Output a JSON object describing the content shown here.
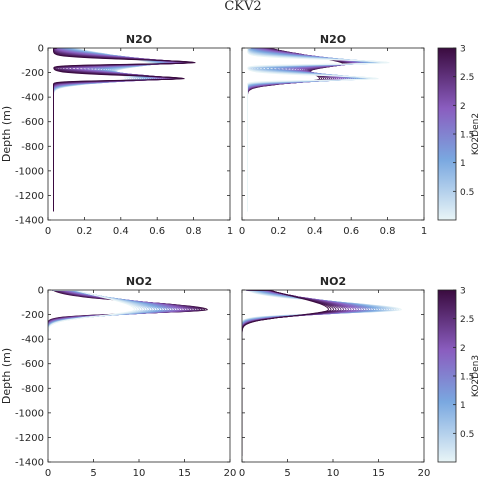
{
  "figure": {
    "title": "CKV2"
  },
  "colors": {
    "low": "#e9f5f7",
    "mid1": "#7aa8e0",
    "mid2": "#8a5dbf",
    "high": "#3a0b3f",
    "axis": "#262626"
  },
  "chart_data": [
    {
      "id": "n2o-left",
      "type": "line",
      "title": "N2O",
      "xlim": [
        0,
        1
      ],
      "ylim": [
        -1400,
        0
      ],
      "xticks": [
        0,
        0.2,
        0.4,
        0.6,
        0.8,
        1
      ],
      "xtick_labels": [
        "0",
        "0.2",
        "0.4",
        "0.6",
        "0.8",
        "1"
      ],
      "yticks": [
        0,
        -200,
        -400,
        -600,
        -800,
        -1000,
        -1200,
        -1400
      ],
      "ytick_labels": [
        "0",
        "-200",
        "-400",
        "-600",
        "-800",
        "-1000",
        "-1200",
        "-1400"
      ],
      "ylabel": "Depth (m)",
      "profile": {
        "base": 0.03,
        "peaks": [
          {
            "depth": -120,
            "amp": 0.78
          },
          {
            "depth": -250,
            "amp": 0.72
          }
        ],
        "min_depth": -1330
      },
      "n_lines": 30,
      "color_reversed": false
    },
    {
      "id": "n2o-right",
      "type": "line",
      "title": "N2O",
      "xlim": [
        0,
        1
      ],
      "ylim": [
        -1400,
        0
      ],
      "xticks": [
        0,
        0.2,
        0.4,
        0.6,
        0.8,
        1
      ],
      "xtick_labels": [
        "0",
        "0.2",
        "0.4",
        "0.6",
        "0.8",
        "1"
      ],
      "profile": {
        "base": 0.03,
        "peaks": [
          {
            "depth": -120,
            "amp": 0.78
          },
          {
            "depth": -250,
            "amp": 0.72
          }
        ],
        "min_depth": -1330
      },
      "n_lines": 30,
      "color_reversed": true,
      "colorbar": {
        "label": "KO2Den2",
        "range": [
          0,
          3
        ],
        "ticks": [
          0.5,
          1,
          1.5,
          2,
          2.5,
          3
        ],
        "tick_labels": [
          "0.5",
          "1",
          "1.5",
          "2",
          "2.5",
          "3"
        ]
      }
    },
    {
      "id": "no2-left",
      "type": "line",
      "title": "NO2",
      "xlim": [
        0,
        20
      ],
      "ylim": [
        -1400,
        0
      ],
      "xticks": [
        0,
        5,
        10,
        15,
        20
      ],
      "xtick_labels": [
        "0",
        "5",
        "10",
        "15",
        "20"
      ],
      "yticks": [
        0,
        -200,
        -400,
        -600,
        -800,
        -1000,
        -1200,
        -1400
      ],
      "ytick_labels": [
        "0",
        "-200",
        "-400",
        "-600",
        "-800",
        "-1000",
        "-1200",
        "-1400"
      ],
      "ylabel": "Depth (m)",
      "profile": {
        "base": 0.0,
        "peaks": [
          {
            "depth": -160,
            "amp_max": 17.5,
            "amp_min": 9.5
          }
        ],
        "min_depth": -1350
      },
      "n_lines": 30,
      "color_reversed": true
    },
    {
      "id": "no2-right",
      "type": "line",
      "title": "NO2",
      "xlim": [
        0,
        20
      ],
      "ylim": [
        -1400,
        0
      ],
      "xticks": [
        0,
        5,
        10,
        15,
        20
      ],
      "xtick_labels": [
        "0",
        "5",
        "10",
        "15",
        "20"
      ],
      "profile": {
        "base": 0.0,
        "peaks": [
          {
            "depth": -160,
            "amp_max": 17.5,
            "amp_min": 9.5
          }
        ],
        "min_depth": -1350
      },
      "n_lines": 30,
      "color_reversed": false,
      "colorbar": {
        "label": "KO2Den3",
        "range": [
          0,
          3
        ],
        "ticks": [
          0.5,
          1,
          1.5,
          2,
          2.5,
          3
        ],
        "tick_labels": [
          "0.5",
          "1",
          "1.5",
          "2",
          "2.5",
          "3"
        ]
      }
    }
  ]
}
